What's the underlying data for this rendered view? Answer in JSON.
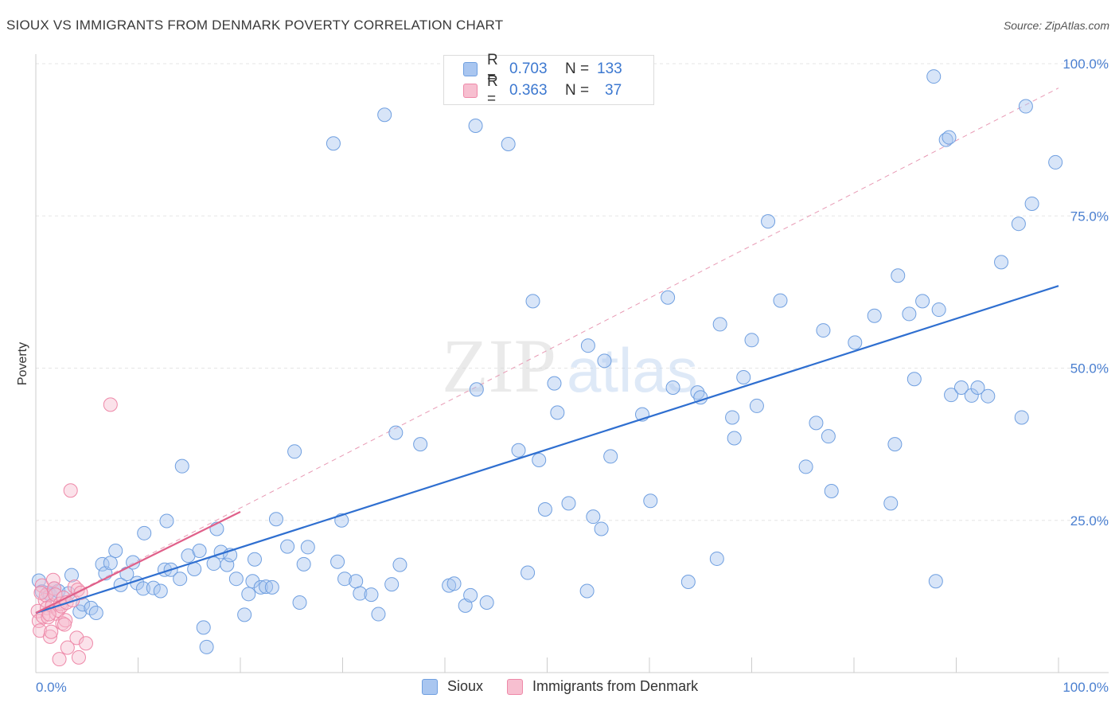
{
  "title": "SIOUX VS IMMIGRANTS FROM DENMARK POVERTY CORRELATION CHART",
  "source": "Source: ZipAtlas.com",
  "legend": {
    "rows": [
      {
        "r_label": "R =",
        "r_value": "0.703",
        "n_label": "N =",
        "n_value": "133",
        "color": "#a9c6f0",
        "border": "#6f9fe0"
      },
      {
        "r_label": "R =",
        "r_value": "0.363",
        "n_label": "N =",
        "n_value": "37",
        "color": "#f7bfd0",
        "border": "#ee88a8"
      }
    ]
  },
  "bottom_legend": [
    "Sioux",
    "Immigrants from Denmark"
  ],
  "chart_data": {
    "type": "scatter",
    "xlabel": "",
    "ylabel": "Poverty",
    "xlim": [
      0,
      100
    ],
    "ylim": [
      0,
      100
    ],
    "x_tick_labels": [
      "0.0%",
      "100.0%"
    ],
    "y_tick_labels": [
      {
        "value": 25,
        "label": "25.0%"
      },
      {
        "value": 50,
        "label": "50.0%"
      },
      {
        "value": 75,
        "label": "75.0%"
      },
      {
        "value": 100,
        "label": "100.0%"
      }
    ],
    "grid": true,
    "legend_position": "top-center",
    "series": [
      {
        "name": "Sioux",
        "color": "#a9c6f0",
        "stroke": "#6f9fe0",
        "trend": {
          "x": [
            0,
            100
          ],
          "y": [
            9.8,
            63.5
          ],
          "color": "#2f6fd0"
        },
        "points": [
          [
            0.3,
            15.1
          ],
          [
            0.6,
            13.3
          ],
          [
            1.2,
            13.1
          ],
          [
            1.4,
            12.8
          ],
          [
            1.8,
            13.8
          ],
          [
            2.2,
            13.4
          ],
          [
            3.2,
            13.0
          ],
          [
            3.5,
            16.0
          ],
          [
            4.3,
            10.0
          ],
          [
            4.6,
            11.2
          ],
          [
            5.4,
            10.6
          ],
          [
            5.9,
            9.8
          ],
          [
            6.5,
            17.8
          ],
          [
            6.8,
            16.3
          ],
          [
            7.3,
            18.0
          ],
          [
            7.8,
            20.0
          ],
          [
            8.3,
            14.4
          ],
          [
            8.9,
            16.2
          ],
          [
            9.5,
            18.1
          ],
          [
            9.9,
            14.7
          ],
          [
            10.6,
            22.9
          ],
          [
            10.5,
            13.8
          ],
          [
            11.5,
            13.9
          ],
          [
            12.2,
            13.4
          ],
          [
            12.6,
            16.9
          ],
          [
            12.8,
            24.9
          ],
          [
            13.2,
            16.9
          ],
          [
            14.1,
            15.4
          ],
          [
            14.3,
            33.9
          ],
          [
            14.9,
            19.2
          ],
          [
            15.5,
            17.0
          ],
          [
            16.0,
            20.0
          ],
          [
            16.4,
            7.4
          ],
          [
            16.7,
            4.2
          ],
          [
            17.4,
            17.9
          ],
          [
            17.7,
            23.6
          ],
          [
            18.1,
            19.8
          ],
          [
            18.7,
            17.7
          ],
          [
            19.0,
            19.3
          ],
          [
            19.6,
            15.4
          ],
          [
            20.4,
            9.5
          ],
          [
            20.8,
            12.9
          ],
          [
            21.2,
            15.0
          ],
          [
            21.4,
            18.6
          ],
          [
            22.0,
            14.0
          ],
          [
            22.5,
            14.1
          ],
          [
            23.1,
            14.0
          ],
          [
            23.5,
            25.2
          ],
          [
            24.6,
            20.7
          ],
          [
            25.3,
            36.3
          ],
          [
            25.8,
            11.5
          ],
          [
            26.2,
            17.8
          ],
          [
            26.6,
            20.6
          ],
          [
            29.1,
            86.9
          ],
          [
            29.5,
            18.2
          ],
          [
            29.9,
            25.0
          ],
          [
            30.2,
            15.4
          ],
          [
            31.3,
            15.0
          ],
          [
            31.7,
            13.0
          ],
          [
            32.8,
            12.8
          ],
          [
            33.5,
            9.6
          ],
          [
            34.1,
            91.6
          ],
          [
            34.8,
            14.5
          ],
          [
            35.2,
            39.4
          ],
          [
            35.6,
            17.7
          ],
          [
            37.6,
            37.5
          ],
          [
            40.4,
            14.3
          ],
          [
            40.9,
            14.6
          ],
          [
            42.0,
            11.0
          ],
          [
            42.5,
            12.7
          ],
          [
            43.0,
            89.8
          ],
          [
            43.1,
            46.5
          ],
          [
            44.1,
            11.5
          ],
          [
            46.2,
            86.8
          ],
          [
            47.2,
            36.5
          ],
          [
            48.1,
            16.4
          ],
          [
            48.6,
            61.0
          ],
          [
            49.2,
            34.9
          ],
          [
            49.8,
            26.8
          ],
          [
            50.7,
            47.5
          ],
          [
            51.0,
            42.7
          ],
          [
            52.1,
            27.8
          ],
          [
            53.9,
            13.4
          ],
          [
            54.0,
            53.7
          ],
          [
            54.5,
            25.6
          ],
          [
            55.3,
            23.6
          ],
          [
            55.6,
            51.2
          ],
          [
            56.2,
            35.5
          ],
          [
            59.3,
            42.4
          ],
          [
            60.1,
            28.2
          ],
          [
            61.8,
            61.6
          ],
          [
            62.3,
            46.8
          ],
          [
            63.8,
            14.9
          ],
          [
            64.7,
            46.0
          ],
          [
            65.0,
            45.2
          ],
          [
            66.6,
            18.7
          ],
          [
            66.9,
            57.2
          ],
          [
            68.1,
            41.9
          ],
          [
            68.3,
            38.5
          ],
          [
            69.2,
            48.5
          ],
          [
            70.0,
            54.6
          ],
          [
            70.5,
            43.8
          ],
          [
            71.6,
            74.1
          ],
          [
            72.8,
            61.1
          ],
          [
            75.3,
            33.8
          ],
          [
            76.3,
            41.0
          ],
          [
            77.0,
            56.2
          ],
          [
            77.5,
            38.8
          ],
          [
            77.8,
            29.8
          ],
          [
            80.1,
            54.2
          ],
          [
            82.0,
            58.6
          ],
          [
            83.6,
            27.8
          ],
          [
            84.0,
            37.5
          ],
          [
            84.3,
            65.2
          ],
          [
            85.4,
            58.9
          ],
          [
            85.9,
            48.2
          ],
          [
            86.7,
            61.0
          ],
          [
            87.8,
            97.9
          ],
          [
            88.0,
            15.0
          ],
          [
            88.3,
            59.6
          ],
          [
            89.0,
            87.5
          ],
          [
            89.3,
            87.9
          ],
          [
            89.5,
            45.6
          ],
          [
            90.5,
            46.8
          ],
          [
            91.5,
            45.5
          ],
          [
            92.1,
            46.8
          ],
          [
            93.1,
            45.4
          ],
          [
            94.4,
            67.4
          ],
          [
            96.1,
            73.7
          ],
          [
            96.4,
            41.9
          ],
          [
            96.8,
            93.0
          ],
          [
            97.4,
            77.0
          ],
          [
            99.7,
            83.8
          ]
        ]
      },
      {
        "name": "Immigrants from Denmark",
        "color": "#f7bfd0",
        "stroke": "#ee88a8",
        "trend": {
          "x": [
            0,
            20
          ],
          "y": [
            9.8,
            26.4
          ],
          "color": "#e0608a"
        },
        "trend_extended": {
          "x": [
            0,
            100
          ],
          "y": [
            9.8,
            96.0
          ],
          "color": "#e89ab4"
        },
        "points": [
          [
            0.2,
            10.1
          ],
          [
            0.3,
            8.5
          ],
          [
            0.4,
            6.9
          ],
          [
            0.6,
            14.3
          ],
          [
            0.7,
            9.2
          ],
          [
            0.9,
            11.9
          ],
          [
            1.0,
            12.7
          ],
          [
            1.1,
            10.6
          ],
          [
            1.2,
            9.1
          ],
          [
            1.4,
            5.9
          ],
          [
            1.5,
            6.7
          ],
          [
            1.6,
            11.0
          ],
          [
            1.7,
            15.2
          ],
          [
            1.8,
            13.8
          ],
          [
            1.9,
            12.8
          ],
          [
            2.0,
            9.7
          ],
          [
            2.2,
            10.2
          ],
          [
            2.3,
            2.2
          ],
          [
            2.4,
            11.3
          ],
          [
            2.5,
            10.9
          ],
          [
            2.6,
            8.1
          ],
          [
            2.7,
            12.3
          ],
          [
            2.9,
            8.6
          ],
          [
            3.0,
            11.5
          ],
          [
            3.1,
            4.1
          ],
          [
            3.4,
            29.9
          ],
          [
            3.6,
            11.9
          ],
          [
            3.8,
            14.1
          ],
          [
            4.0,
            5.7
          ],
          [
            4.1,
            13.6
          ],
          [
            4.2,
            2.5
          ],
          [
            4.4,
            13.1
          ],
          [
            4.9,
            4.8
          ],
          [
            7.3,
            44.0
          ],
          [
            0.5,
            13.1
          ],
          [
            1.3,
            9.6
          ],
          [
            2.8,
            7.9
          ]
        ]
      }
    ]
  }
}
